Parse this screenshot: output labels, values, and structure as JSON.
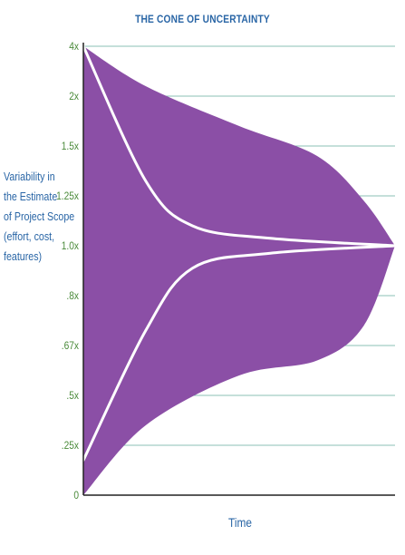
{
  "chart_data": {
    "type": "area",
    "title": "THE CONE OF UNCERTAINTY",
    "xlabel": "Time",
    "ylabel": [
      "Variability in",
      "the Estimate",
      "of Project Scope",
      "(effort, cost,",
      "features)"
    ],
    "y_ticks": [
      "4x",
      "2x",
      "1.5x",
      "1.25x",
      "1.0x",
      ".8x",
      ".67x",
      ".5x",
      ".25x",
      "0"
    ],
    "ylim": [
      "0",
      "4x"
    ],
    "grid": true,
    "series": [
      {
        "kind": "band-upper",
        "x": [
          0,
          0.2,
          0.5,
          0.75,
          0.9,
          1.0
        ],
        "y_tick_pos": [
          9,
          8.2,
          7.4,
          6.8,
          5.9,
          5.0
        ]
      },
      {
        "kind": "band-lower",
        "x": [
          0,
          0.2,
          0.5,
          0.75,
          0.9,
          1.0
        ],
        "y_tick_pos": [
          0,
          1.4,
          2.4,
          2.7,
          3.4,
          5.0
        ]
      },
      {
        "kind": "line-upper",
        "x": [
          0,
          0.2,
          0.35,
          0.6,
          1.0
        ],
        "y_tick_pos": [
          9,
          6.3,
          5.4,
          5.15,
          5.0
        ]
      },
      {
        "kind": "line-lower",
        "x": [
          0,
          0.2,
          0.35,
          0.6,
          1.0
        ],
        "y_tick_pos": [
          0.7,
          3.3,
          4.55,
          4.85,
          5.0
        ]
      }
    ]
  },
  "colors": {
    "fill": "#8b4fa6",
    "line": "#ffffff",
    "grid": "#8bc0b6",
    "axis": "#222222",
    "tick_text": "#4a8a3a",
    "title_text": "#2a66a6",
    "label_text": "#2a66a6"
  }
}
